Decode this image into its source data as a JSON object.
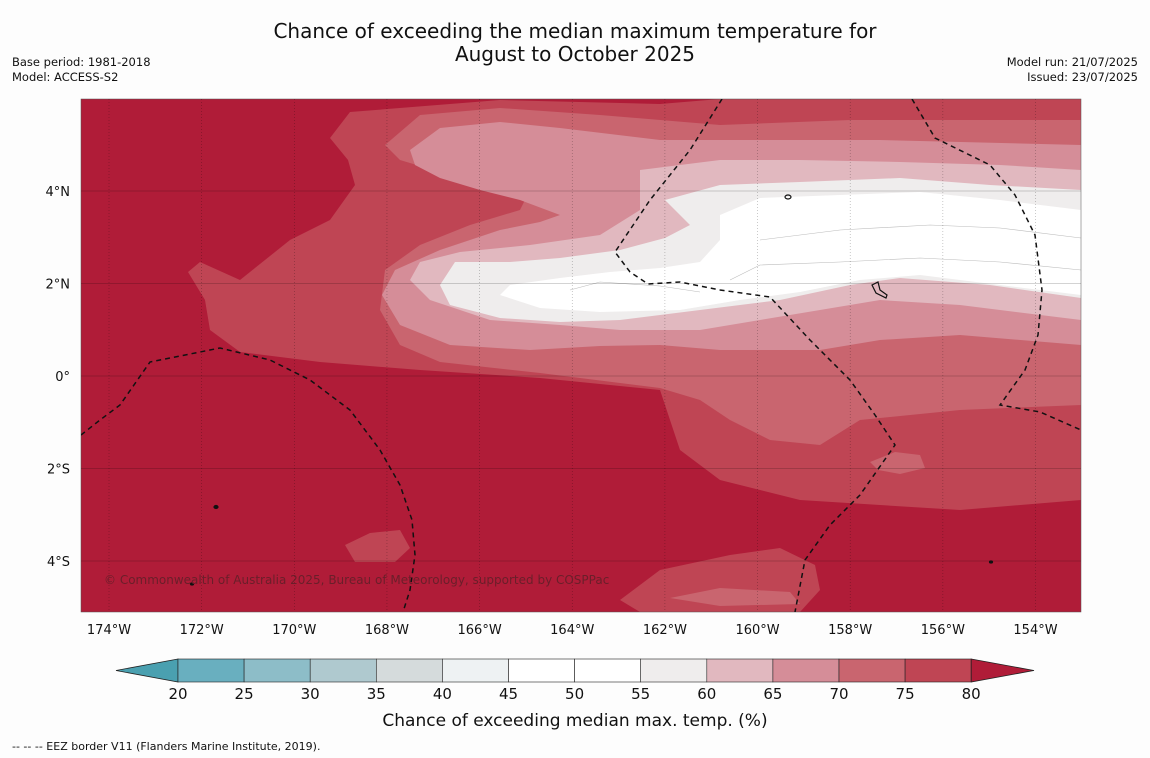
{
  "title_line1": "Chance of exceeding the median maximum temperature for",
  "title_line2": "August to October 2025",
  "base_period": "Base period: 1981-2018",
  "model": "Model: ACCESS-S2",
  "model_run": "Model run: 21/07/2025",
  "issued": "Issued: 23/07/2025",
  "copyright": "© Commonwealth of Australia 2025, Bureau of Meteorology, supported by COSPPac",
  "lon_labels": [
    "174°W",
    "172°W",
    "170°W",
    "168°W",
    "166°W",
    "164°W",
    "162°W",
    "160°W",
    "158°W",
    "156°W",
    "154°W"
  ],
  "lat_labels": [
    "4°N",
    "2°N",
    "0°",
    "2°S",
    "4°S"
  ],
  "colorbar": {
    "ticks": [
      "20",
      "25",
      "30",
      "35",
      "40",
      "45",
      "50",
      "55",
      "60",
      "65",
      "70",
      "75",
      "80"
    ],
    "colors": [
      "#4aa0b0",
      "#69afbf",
      "#8dbdc8",
      "#afc9cf",
      "#d5dbdc",
      "#eef2f3",
      "#ffffff",
      "#ffffff",
      "#efeded",
      "#e1b8bf",
      "#d58d98",
      "#c9656f",
      "#bf4554",
      "#b01c38"
    ],
    "label": "Chance of exceeding median max. temp. (%)"
  },
  "legend_note": "--  --  -- EEZ border V11 (Flanders Marine Institute, 2019)."
}
